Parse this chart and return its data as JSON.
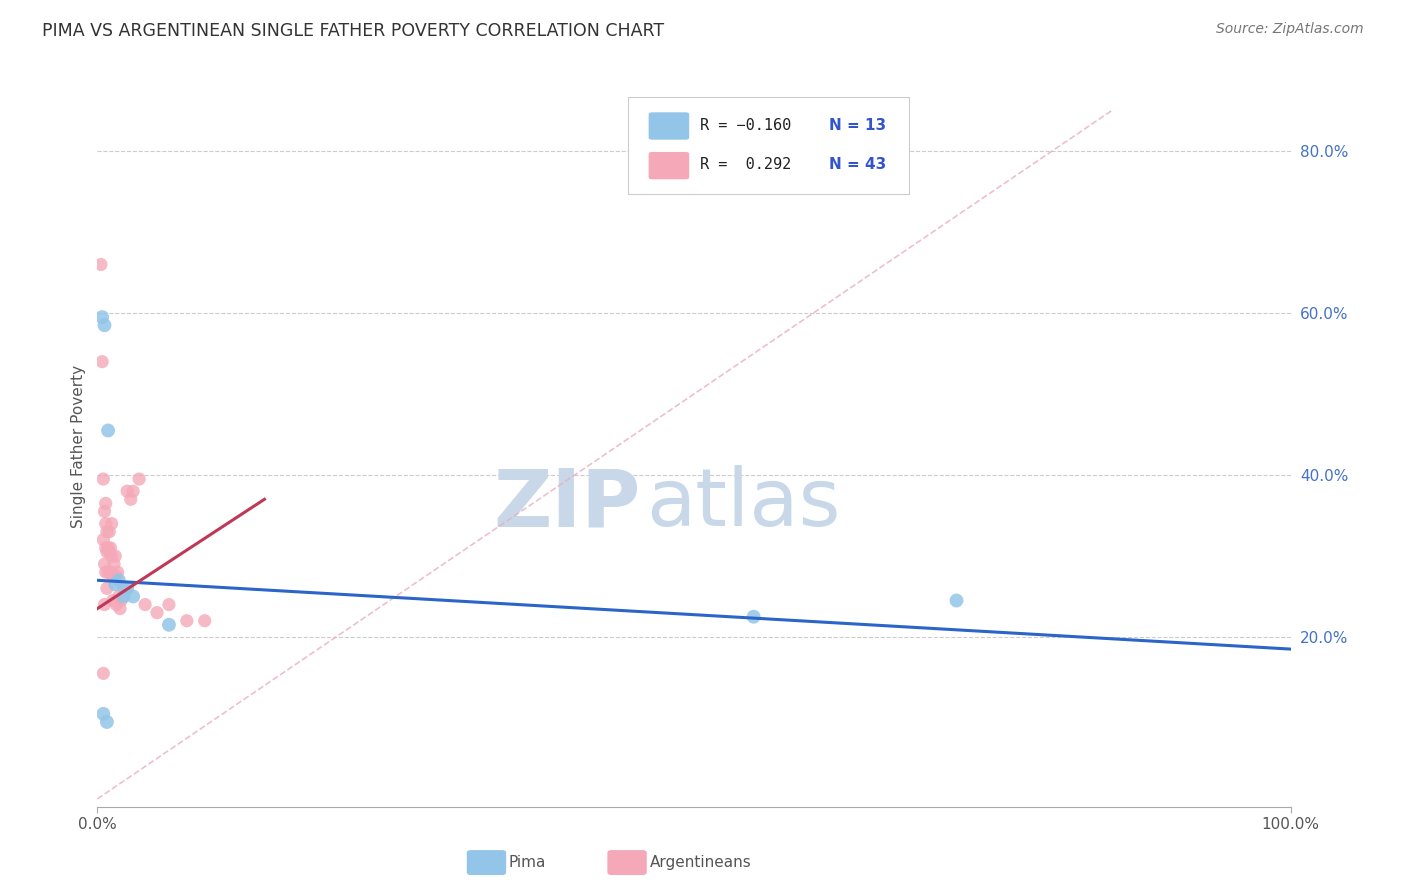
{
  "title": "PIMA VS ARGENTINEAN SINGLE FATHER POVERTY CORRELATION CHART",
  "source": "Source: ZipAtlas.com",
  "ylabel": "Single Father Poverty",
  "ylabel_right_labels": [
    "20.0%",
    "40.0%",
    "60.0%",
    "80.0%"
  ],
  "ylabel_right_values": [
    0.2,
    0.4,
    0.6,
    0.8
  ],
  "xlim": [
    0.0,
    1.0
  ],
  "ylim": [
    -0.01,
    0.88
  ],
  "pima_R": -0.16,
  "pima_N": 13,
  "arg_R": 0.292,
  "arg_N": 43,
  "pima_color": "#92C5E8",
  "arg_color": "#F4A8B8",
  "pima_line_color": "#2B65C8",
  "arg_line_color": "#C03858",
  "pima_line_x0": 0.0,
  "pima_line_y0": 0.27,
  "pima_line_x1": 1.0,
  "pima_line_y1": 0.185,
  "arg_line_x0": 0.0,
  "arg_line_y0": 0.235,
  "arg_line_x1": 0.14,
  "arg_line_y1": 0.37,
  "diag_color": "#E8B0C0",
  "pima_points_x": [
    0.004,
    0.006,
    0.009,
    0.015,
    0.025,
    0.018,
    0.022,
    0.03,
    0.06,
    0.55,
    0.72,
    0.005,
    0.008
  ],
  "pima_points_y": [
    0.595,
    0.585,
    0.455,
    0.265,
    0.26,
    0.27,
    0.25,
    0.25,
    0.215,
    0.225,
    0.245,
    0.105,
    0.095
  ],
  "arg_points_x": [
    0.003,
    0.004,
    0.005,
    0.005,
    0.005,
    0.006,
    0.006,
    0.006,
    0.007,
    0.007,
    0.007,
    0.007,
    0.008,
    0.008,
    0.008,
    0.009,
    0.009,
    0.01,
    0.01,
    0.011,
    0.011,
    0.012,
    0.012,
    0.013,
    0.013,
    0.014,
    0.015,
    0.016,
    0.016,
    0.017,
    0.018,
    0.019,
    0.02,
    0.022,
    0.025,
    0.028,
    0.03,
    0.035,
    0.04,
    0.05,
    0.06,
    0.075,
    0.09
  ],
  "arg_points_y": [
    0.66,
    0.54,
    0.395,
    0.32,
    0.155,
    0.355,
    0.29,
    0.24,
    0.365,
    0.34,
    0.31,
    0.28,
    0.33,
    0.305,
    0.26,
    0.31,
    0.28,
    0.33,
    0.305,
    0.31,
    0.28,
    0.34,
    0.3,
    0.275,
    0.245,
    0.29,
    0.3,
    0.275,
    0.24,
    0.28,
    0.25,
    0.235,
    0.245,
    0.26,
    0.38,
    0.37,
    0.38,
    0.395,
    0.24,
    0.23,
    0.24,
    0.22,
    0.22
  ],
  "pima_marker_size": 100,
  "arg_marker_size": 90,
  "background_color": "#ffffff",
  "grid_color": "#cccccc",
  "watermark_zip": "ZIP",
  "watermark_atlas": "atlas",
  "watermark_color_zip": "#c8d8e8",
  "watermark_color_atlas": "#c8d8e8"
}
